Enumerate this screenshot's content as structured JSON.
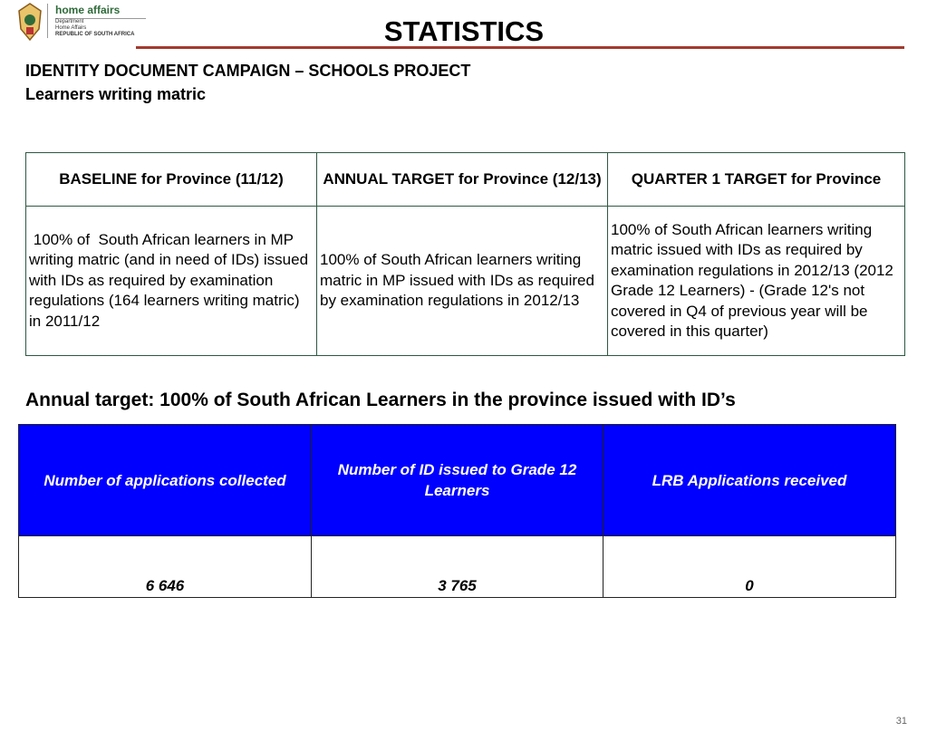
{
  "header": {
    "logo": {
      "brand": "home affairs",
      "lines": [
        "Department",
        "Home Affairs",
        "REPUBLIC OF SOUTH AFRICA"
      ]
    },
    "title": "STATISTICS",
    "subtitle": "IDENTITY DOCUMENT CAMPAIGN – SCHOOLS PROJECT",
    "subtitle2": "Learners writing matric"
  },
  "targets_table": {
    "columns": [
      "BASELINE for Province (11/12)",
      "ANNUAL TARGET for Province (12/13)",
      "QUARTER 1 TARGET for Province"
    ],
    "rows": [
      [
        " 100% of  South African learners in MP writing matric (and in need of IDs) issued with IDs as required by examination regulations (164 learners writing matric) in 2011/12",
        "100% of  South African learners writing matric in MP issued with IDs as required by examination regulations in 2012/13",
        "100% of  South African learners writing matric issued with IDs as required by examination regulations in 2012/13 (2012 Grade 12 Learners) - (Grade 12's not covered in Q4 of previous year will be covered in this quarter)"
      ]
    ]
  },
  "annual_heading": "Annual target: 100% of South African Learners in the province issued with ID’s",
  "results_table": {
    "columns": [
      "Number of applications collected",
      "Number of ID issued to Grade 12 Learners",
      "LRB Applications received"
    ],
    "rows": [
      [
        "6 646",
        "3 765",
        "0"
      ]
    ]
  },
  "page_number": "31"
}
